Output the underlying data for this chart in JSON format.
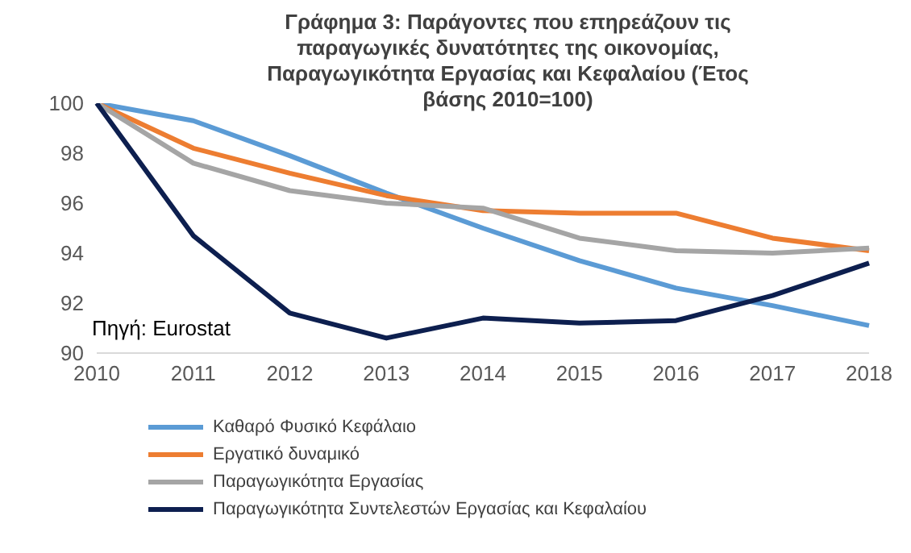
{
  "chart_data": {
    "type": "line",
    "title": "Γράφημα 3: Παράγοντες που επηρεάζουν τις παραγωγικές δυνατότητες της οικονομίας, Παραγωγικότητα Εργασίας και Κεφαλαίου (Έτος βάσης 2010=100)",
    "categories": [
      "2010",
      "2011",
      "2012",
      "2013",
      "2014",
      "2015",
      "2016",
      "2017",
      "2018"
    ],
    "series": [
      {
        "name": "Καθαρό Φυσικό Κεφάλαιο",
        "color": "#5b9bd5",
        "values": [
          100,
          99.3,
          97.9,
          96.4,
          95.0,
          93.7,
          92.6,
          91.9,
          91.1
        ]
      },
      {
        "name": "Εργατικό δυναμικό",
        "color": "#ed7d31",
        "values": [
          100,
          98.2,
          97.2,
          96.3,
          95.7,
          95.6,
          95.6,
          94.6,
          94.1
        ]
      },
      {
        "name": "Παραγωγικότητα Εργασίας",
        "color": "#a5a5a5",
        "values": [
          100,
          97.6,
          96.5,
          96.0,
          95.8,
          94.6,
          94.1,
          94.0,
          94.2
        ]
      },
      {
        "name": "Παραγωγικότητα Συντελεστών Εργασίας και Κεφαλαίου",
        "color": "#0d1f4f",
        "values": [
          100,
          94.7,
          91.6,
          90.6,
          91.4,
          91.2,
          91.3,
          92.3,
          93.6
        ]
      }
    ],
    "ylim": [
      90,
      100
    ],
    "yticks": [
      90,
      92,
      94,
      96,
      98,
      100
    ],
    "annotations": [
      "Πηγή: Eurostat"
    ],
    "grid": false,
    "legend": "bottom",
    "marker": "none",
    "line_style": "solid"
  }
}
